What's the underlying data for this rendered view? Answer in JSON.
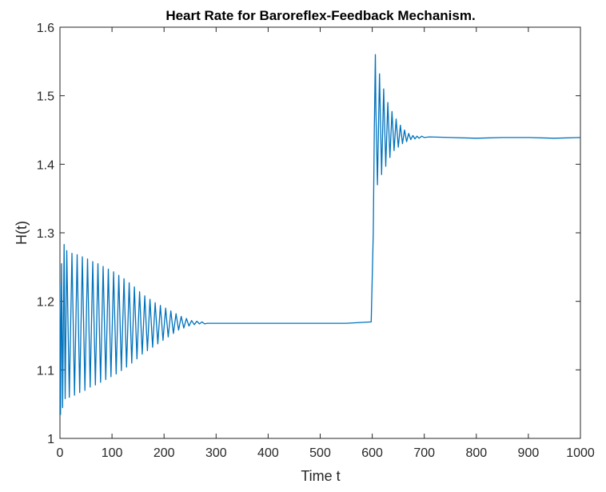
{
  "chart_data": {
    "type": "line",
    "title": "Heart Rate for Baroreflex-Feedback Mechanism.",
    "xlabel": "Time t",
    "ylabel": "H(t)",
    "xlim": [
      0,
      1000
    ],
    "ylim": [
      1,
      1.6
    ],
    "xticks": [
      0,
      100,
      200,
      300,
      400,
      500,
      600,
      700,
      800,
      900,
      1000
    ],
    "xtick_labels": [
      "0",
      "100",
      "200",
      "300",
      "400",
      "500",
      "600",
      "700",
      "800",
      "900",
      "1000"
    ],
    "yticks": [
      1,
      1.1,
      1.2,
      1.3,
      1.4,
      1.5,
      1.6
    ],
    "ytick_labels": [
      "1",
      "1.1",
      "1.2",
      "1.3",
      "1.4",
      "1.5",
      "1.6"
    ],
    "grid": false,
    "legend": "none",
    "line_color": "#0072BD",
    "series": [
      {
        "x": [
          0,
          1,
          3,
          5,
          8,
          10,
          13,
          18,
          23,
          28,
          33,
          38,
          43,
          48,
          53,
          58,
          63,
          68,
          73,
          78,
          83,
          88,
          93,
          98,
          103,
          108,
          113,
          118,
          123,
          128,
          133,
          138,
          143,
          148,
          153,
          158,
          163,
          168,
          173,
          178,
          183,
          188,
          193,
          198,
          203,
          208,
          213,
          218,
          223,
          228,
          233,
          238,
          243,
          248,
          253,
          258,
          263,
          268,
          273,
          278,
          283,
          300,
          350,
          400,
          450,
          500,
          550,
          598,
          602,
          604,
          606,
          607,
          610,
          614,
          618,
          622,
          626,
          630,
          634,
          638,
          642,
          646,
          650,
          654,
          658,
          662,
          666,
          670,
          674,
          678,
          682,
          686,
          690,
          695,
          700,
          710,
          750,
          800,
          850,
          900,
          950,
          1000
        ],
        "y": [
          1.225,
          1.035,
          1.255,
          1.045,
          1.283,
          1.058,
          1.274,
          1.06,
          1.27,
          1.063,
          1.268,
          1.067,
          1.265,
          1.07,
          1.262,
          1.075,
          1.258,
          1.078,
          1.255,
          1.082,
          1.251,
          1.086,
          1.247,
          1.09,
          1.243,
          1.094,
          1.238,
          1.099,
          1.233,
          1.104,
          1.227,
          1.11,
          1.221,
          1.116,
          1.214,
          1.123,
          1.208,
          1.128,
          1.203,
          1.133,
          1.198,
          1.138,
          1.194,
          1.143,
          1.19,
          1.148,
          1.186,
          1.153,
          1.182,
          1.158,
          1.178,
          1.161,
          1.175,
          1.164,
          1.172,
          1.166,
          1.171,
          1.167,
          1.17,
          1.167,
          1.168,
          1.168,
          1.168,
          1.168,
          1.168,
          1.168,
          1.168,
          1.17,
          1.3,
          1.45,
          1.56,
          1.48,
          1.37,
          1.532,
          1.385,
          1.51,
          1.397,
          1.49,
          1.41,
          1.477,
          1.42,
          1.466,
          1.425,
          1.457,
          1.43,
          1.45,
          1.433,
          1.445,
          1.436,
          1.442,
          1.437,
          1.441,
          1.438,
          1.441,
          1.439,
          1.44,
          1.439,
          1.438,
          1.439,
          1.439,
          1.438,
          1.439
        ]
      }
    ]
  }
}
